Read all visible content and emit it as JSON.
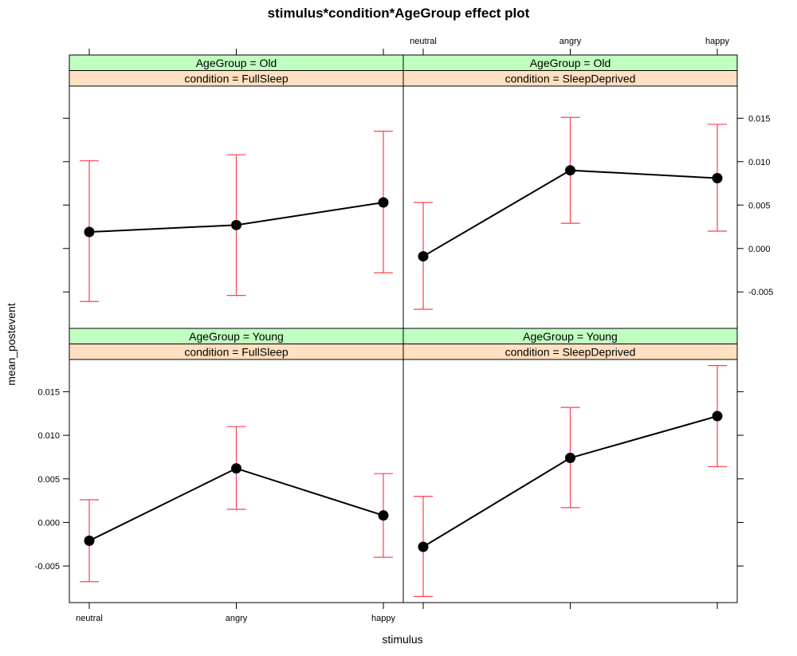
{
  "chart_data": {
    "type": "line",
    "title": "stimulus*condition*AgeGroup effect plot",
    "xlabel": "stimulus",
    "ylabel": "mean_postevent",
    "categories": [
      "neutral",
      "angry",
      "happy"
    ],
    "y_ticks": [
      "-0.005",
      "0.000",
      "0.005",
      "0.010",
      "0.015"
    ],
    "y_tick_values": [
      -0.005,
      0.0,
      0.005,
      0.01,
      0.015
    ],
    "ylim": [
      -0.0092,
      0.0187
    ],
    "colors": {
      "line": "#000000",
      "error_bar": "#ff4050",
      "strip_agegroup": "#c0ffc0",
      "strip_condition": "#ffe0c0"
    },
    "panels": [
      {
        "id": "young-fullsleep",
        "agegroup": "AgeGroup = Young",
        "condition": "condition = FullSleep",
        "estimates": [
          -0.0021,
          0.0062,
          0.0008
        ],
        "lower": [
          -0.0068,
          0.0015,
          -0.004
        ],
        "upper": [
          0.0026,
          0.011,
          0.0056
        ]
      },
      {
        "id": "young-sleepdeprived",
        "agegroup": "AgeGroup = Young",
        "condition": "condition = SleepDeprived",
        "estimates": [
          -0.0028,
          0.0074,
          0.0122
        ],
        "lower": [
          -0.0085,
          0.0017,
          0.0064
        ],
        "upper": [
          0.003,
          0.0132,
          0.018
        ]
      },
      {
        "id": "old-fullsleep",
        "agegroup": "AgeGroup = Old",
        "condition": "condition = FullSleep",
        "estimates": [
          0.0019,
          0.0027,
          0.0053
        ],
        "lower": [
          -0.0061,
          -0.0054,
          -0.0028
        ],
        "upper": [
          0.0101,
          0.0108,
          0.0135
        ]
      },
      {
        "id": "old-sleepdeprived",
        "agegroup": "AgeGroup = Old",
        "condition": "condition = SleepDeprived",
        "estimates": [
          -0.0009,
          0.009,
          0.0081
        ],
        "lower": [
          -0.007,
          0.0029,
          0.002
        ],
        "upper": [
          0.0053,
          0.0151,
          0.0143
        ]
      }
    ]
  }
}
